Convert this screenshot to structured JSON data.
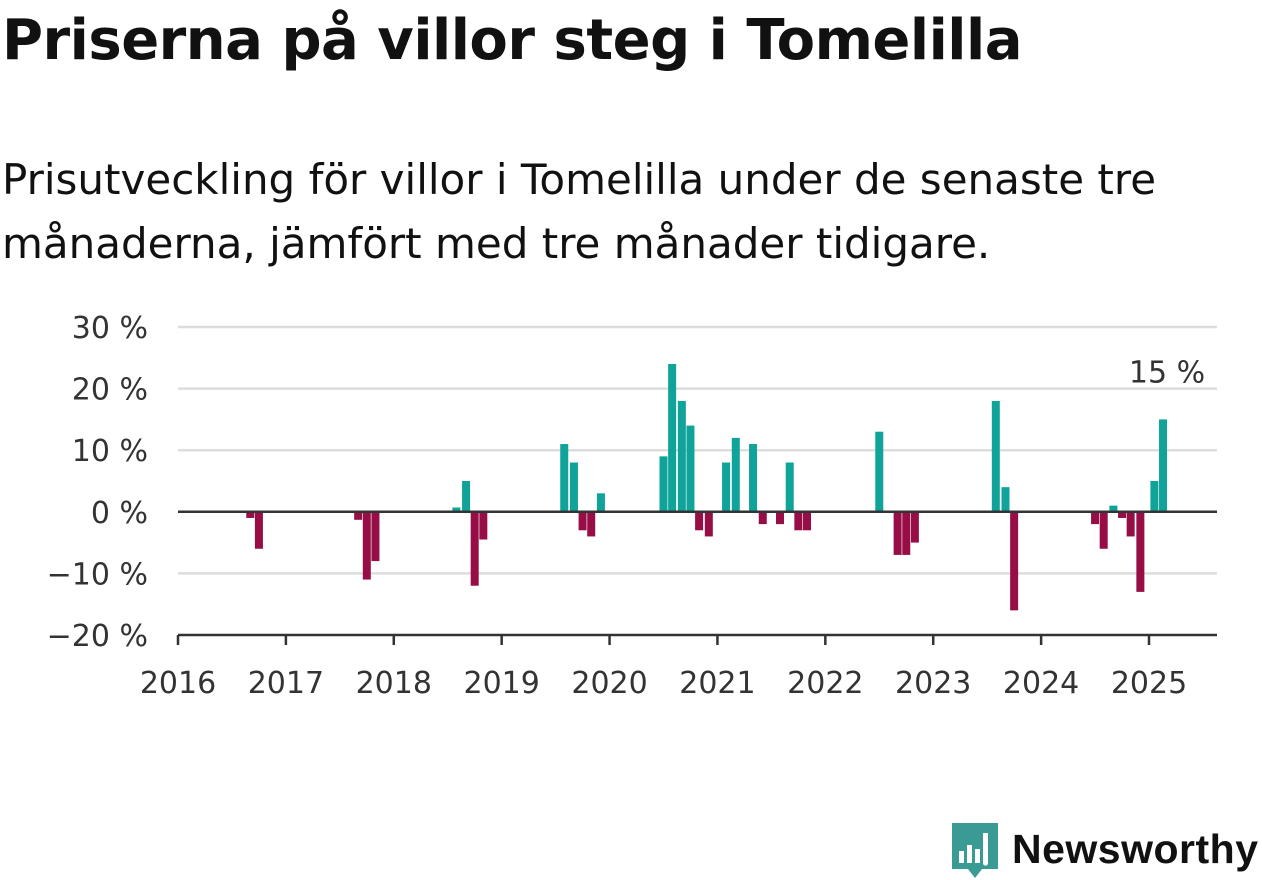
{
  "title": "Priserna på villor steg i Tomelilla",
  "subtitle": "Prisutveckling för villor i Tomelilla under de senaste tre månaderna, jämfört med tre månader tidigare.",
  "brand": {
    "name": "Newsworthy",
    "color": "#3a9a94"
  },
  "colors": {
    "positive": "#0fa39a",
    "negative": "#970d45",
    "grid": "#dddddd",
    "axis": "#333333"
  },
  "chart_data": {
    "type": "bar",
    "x_start": 2016,
    "x_end": 2025.65,
    "xticks": [
      {
        "value": 2016,
        "label": "2016"
      },
      {
        "value": 2017,
        "label": "2017"
      },
      {
        "value": 2018,
        "label": "2018"
      },
      {
        "value": 2019,
        "label": "2019"
      },
      {
        "value": 2020,
        "label": "2020"
      },
      {
        "value": 2021,
        "label": "2021"
      },
      {
        "value": 2022,
        "label": "2022"
      },
      {
        "value": 2023,
        "label": "2023"
      },
      {
        "value": 2024,
        "label": "2024"
      },
      {
        "value": 2025,
        "label": "2025"
      }
    ],
    "yticks": [
      {
        "value": 30,
        "label": "30 %"
      },
      {
        "value": 20,
        "label": "20 %"
      },
      {
        "value": 10,
        "label": "10 %"
      },
      {
        "value": 0,
        "label": "0 %"
      },
      {
        "value": -10,
        "label": "−10 %"
      },
      {
        "value": -20,
        "label": "−20 %"
      }
    ],
    "ylim": [
      -20,
      30
    ],
    "grid": true,
    "annotation": {
      "x": 2025.13,
      "y": 15,
      "label": "15 %"
    },
    "points": [
      {
        "x": 2016.67,
        "y": -1
      },
      {
        "x": 2016.75,
        "y": -6
      },
      {
        "x": 2017.67,
        "y": -1.3
      },
      {
        "x": 2017.75,
        "y": -11
      },
      {
        "x": 2017.83,
        "y": -8
      },
      {
        "x": 2018.58,
        "y": 0.7
      },
      {
        "x": 2018.67,
        "y": 5
      },
      {
        "x": 2018.75,
        "y": -12
      },
      {
        "x": 2018.83,
        "y": -4.5
      },
      {
        "x": 2019.58,
        "y": 11
      },
      {
        "x": 2019.67,
        "y": 8
      },
      {
        "x": 2019.75,
        "y": -3
      },
      {
        "x": 2019.83,
        "y": -4
      },
      {
        "x": 2019.92,
        "y": 3
      },
      {
        "x": 2020.5,
        "y": 9
      },
      {
        "x": 2020.58,
        "y": 24
      },
      {
        "x": 2020.67,
        "y": 18
      },
      {
        "x": 2020.75,
        "y": 14
      },
      {
        "x": 2020.83,
        "y": -3
      },
      {
        "x": 2020.92,
        "y": -4
      },
      {
        "x": 2021.08,
        "y": 8
      },
      {
        "x": 2021.17,
        "y": 12
      },
      {
        "x": 2021.33,
        "y": 11
      },
      {
        "x": 2021.42,
        "y": -2
      },
      {
        "x": 2021.58,
        "y": -2
      },
      {
        "x": 2021.67,
        "y": 8
      },
      {
        "x": 2021.75,
        "y": -3
      },
      {
        "x": 2021.83,
        "y": -3
      },
      {
        "x": 2022.5,
        "y": 13
      },
      {
        "x": 2022.67,
        "y": -7
      },
      {
        "x": 2022.75,
        "y": -7
      },
      {
        "x": 2022.83,
        "y": -5
      },
      {
        "x": 2023.58,
        "y": 18
      },
      {
        "x": 2023.67,
        "y": 4
      },
      {
        "x": 2023.75,
        "y": -16
      },
      {
        "x": 2024.5,
        "y": -2
      },
      {
        "x": 2024.58,
        "y": -6
      },
      {
        "x": 2024.67,
        "y": 1
      },
      {
        "x": 2024.75,
        "y": -1
      },
      {
        "x": 2024.83,
        "y": -4
      },
      {
        "x": 2024.92,
        "y": -13
      },
      {
        "x": 2025.05,
        "y": 5
      },
      {
        "x": 2025.13,
        "y": 15
      }
    ]
  }
}
